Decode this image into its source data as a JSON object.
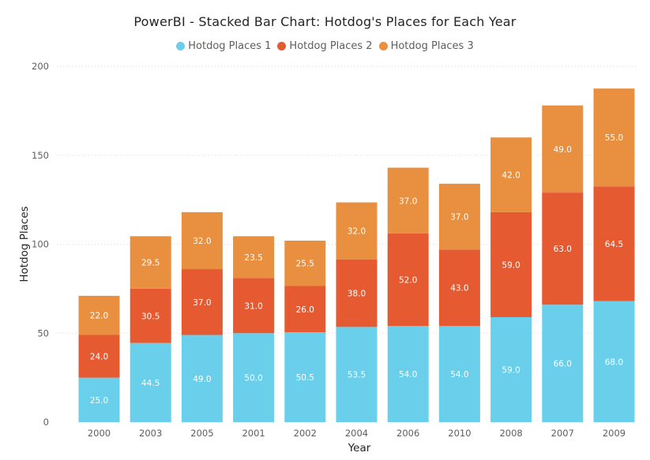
{
  "chart_data": {
    "type": "bar",
    "stacked": true,
    "title": "PowerBI - Stacked Bar Chart: Hotdog's Places for Each Year",
    "xlabel": "Year",
    "ylabel": "Hotdog Places",
    "ylim": [
      0,
      200
    ],
    "yticks": [
      "0",
      "50",
      "100",
      "150",
      "200"
    ],
    "grid": true,
    "legend_position": "top-center",
    "categories": [
      "2000",
      "2003",
      "2005",
      "2001",
      "2002",
      "2004",
      "2006",
      "2010",
      "2008",
      "2007",
      "2009"
    ],
    "series": [
      {
        "name": "Hotdog Places 1",
        "color": "#6ACFEB",
        "values": [
          25.0,
          44.5,
          49.0,
          50.0,
          50.5,
          53.5,
          54.0,
          54.0,
          59.0,
          66.0,
          68.0
        ],
        "labels": [
          "25.0",
          "44.5",
          "49.0",
          "50.0",
          "50.5",
          "53.5",
          "54.0",
          "54.0",
          "59.0",
          "66.0",
          "68.0"
        ]
      },
      {
        "name": "Hotdog Places 2",
        "color": "#E55A30",
        "values": [
          24.0,
          30.5,
          37.0,
          31.0,
          26.0,
          38.0,
          52.0,
          43.0,
          59.0,
          63.0,
          64.5
        ],
        "labels": [
          "24.0",
          "30.5",
          "37.0",
          "31.0",
          "26.0",
          "38.0",
          "52.0",
          "43.0",
          "59.0",
          "63.0",
          "64.5"
        ]
      },
      {
        "name": "Hotdog Places 3",
        "color": "#E89040",
        "values": [
          22.0,
          29.5,
          32.0,
          23.5,
          25.5,
          32.0,
          37.0,
          37.0,
          42.0,
          49.0,
          55.0
        ],
        "labels": [
          "22.0",
          "29.5",
          "32.0",
          "23.5",
          "25.5",
          "32.0",
          "37.0",
          "37.0",
          "42.0",
          "49.0",
          "55.0"
        ]
      }
    ]
  }
}
